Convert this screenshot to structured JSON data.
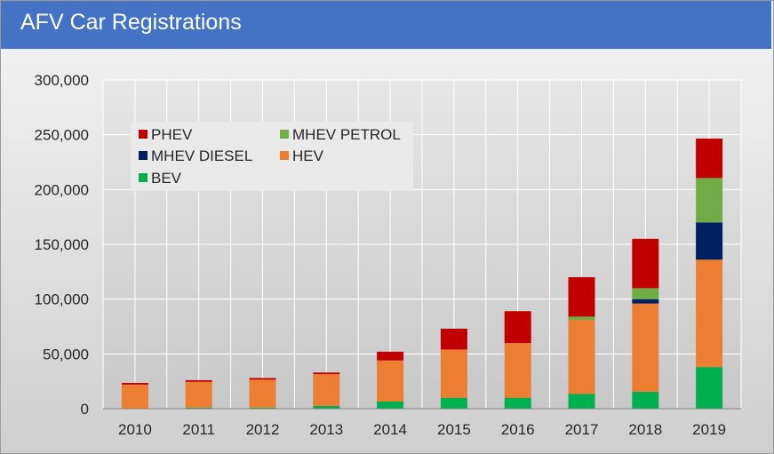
{
  "title": "AFV Car Registrations",
  "chart_data": {
    "type": "bar",
    "stacked": true,
    "title": "AFV Car Registrations",
    "xlabel": "",
    "ylabel": "",
    "ylim": [
      0,
      300000
    ],
    "yticks": [
      0,
      50000,
      100000,
      150000,
      200000,
      250000,
      300000
    ],
    "ytick_labels": [
      "0",
      "50,000",
      "100,000",
      "150,000",
      "200,000",
      "250,000",
      "300,000"
    ],
    "categories": [
      "2010",
      "2011",
      "2012",
      "2013",
      "2014",
      "2015",
      "2016",
      "2017",
      "2018",
      "2019"
    ],
    "series": [
      {
        "name": "BEV",
        "color": "#00b050",
        "values": [
          0,
          1000,
          1000,
          2500,
          6500,
          10000,
          10000,
          13500,
          15500,
          38000
        ]
      },
      {
        "name": "HEV",
        "color": "#ed7d31",
        "values": [
          22000,
          23500,
          25500,
          29000,
          37500,
          44000,
          50000,
          67500,
          80500,
          98000
        ]
      },
      {
        "name": "MHEV DIESEL",
        "color": "#002060",
        "values": [
          0,
          0,
          0,
          0,
          0,
          0,
          0,
          0,
          4000,
          34000
        ]
      },
      {
        "name": "MHEV PETROL",
        "color": "#70ad47",
        "values": [
          0,
          0,
          0,
          0,
          0,
          0,
          0,
          3000,
          10000,
          40500
        ]
      },
      {
        "name": "PHEV",
        "color": "#c00000",
        "values": [
          1500,
          1500,
          1500,
          1500,
          8000,
          19000,
          29000,
          36000,
          45000,
          36000
        ]
      }
    ],
    "legend": {
      "placement": "top-left",
      "order": [
        "PHEV",
        "MHEV PETROL",
        "MHEV DIESEL",
        "HEV",
        "BEV"
      ]
    },
    "grid": true
  }
}
